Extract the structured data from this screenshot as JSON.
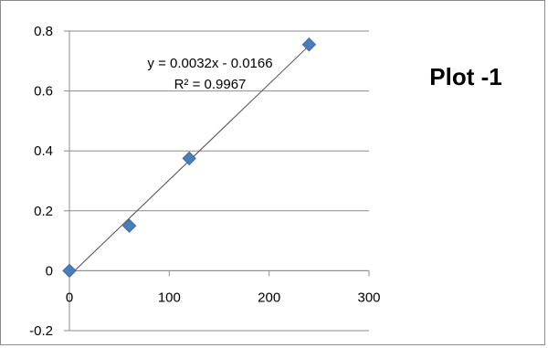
{
  "chart_data": {
    "type": "scatter",
    "title": "Plot -1",
    "xlabel": "",
    "ylabel": "",
    "xlim": [
      0,
      300
    ],
    "ylim": [
      -0.2,
      0.8
    ],
    "x_ticks": [
      "0",
      "100",
      "200",
      "300"
    ],
    "y_ticks": [
      "0.8",
      "0.6",
      "0.4",
      "0.2",
      "0",
      "-0.2"
    ],
    "grid": "horizontal",
    "legend": "none",
    "series": [
      {
        "x": [
          0,
          60,
          120,
          240
        ],
        "y": [
          0.0,
          0.15,
          0.375,
          0.755
        ],
        "marker": "diamond",
        "color": "#4a7ebb"
      }
    ],
    "trendline": {
      "type": "linear",
      "slope": 0.0032,
      "intercept": -0.0166,
      "x_range": [
        0,
        240
      ],
      "color": "#4d4d4d",
      "equation_label": "y = 0.0032x - 0.0166",
      "r2_label": "R² = 0.9967"
    }
  }
}
